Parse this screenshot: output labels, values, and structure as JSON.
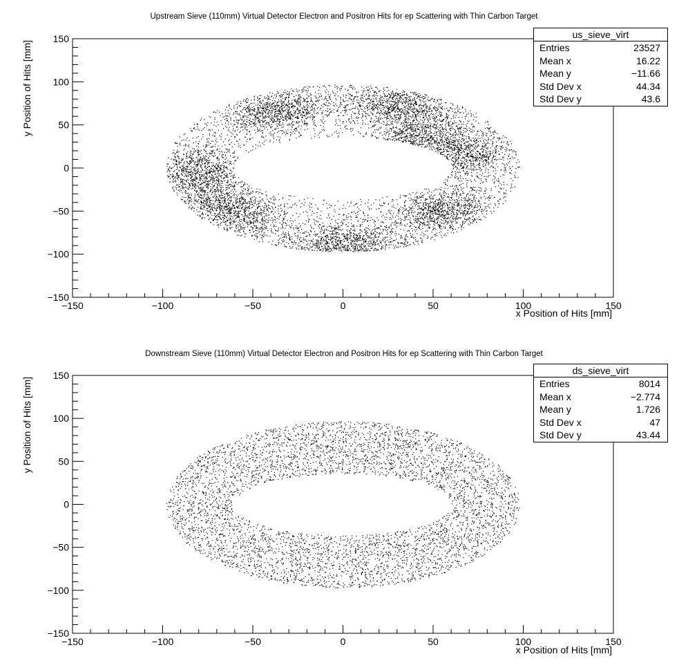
{
  "chart_data": [
    {
      "type": "scatter",
      "title": "Upstream Sieve (110mm) Virtual Detector Electron and Positron Hits for ep Scattering with Thin Carbon Target",
      "xlabel": "x Position of Hits [mm]",
      "ylabel": "y Position of Hits [mm]",
      "xlim": [
        -150,
        150
      ],
      "ylim": [
        -150,
        150
      ],
      "x_ticks": [
        -150,
        -100,
        -50,
        0,
        50,
        100,
        150
      ],
      "y_ticks": [
        -150,
        -100,
        -50,
        0,
        50,
        100,
        150
      ],
      "x_tick_labels": [
        "−150",
        "−100",
        "−50",
        "0",
        "50",
        "100",
        "150"
      ],
      "y_tick_labels": [
        "−150",
        "−100",
        "−50",
        "0",
        "50",
        "100",
        "150"
      ],
      "grid": false,
      "legend": "none",
      "distribution": {
        "shape": "elliptical annulus",
        "center": [
          0,
          0
        ],
        "outer_semi_axes": [
          98,
          97
        ],
        "inner_semi_axes": [
          36,
          36
        ],
        "density": "clustered"
      },
      "stats": {
        "name": "us_sieve_virt",
        "rows": [
          {
            "label": "Entries",
            "value": "23527"
          },
          {
            "label": "Mean x",
            "value": "16.22"
          },
          {
            "label": "Mean y",
            "value": "−11.66"
          },
          {
            "label": "Std Dev x",
            "value": "44.34"
          },
          {
            "label": "Std Dev y",
            "value": "43.6"
          }
        ]
      }
    },
    {
      "type": "scatter",
      "title": "Downstream Sieve (110mm) Virtual Detector Electron and Positron Hits for ep Scattering with Thin Carbon Target",
      "xlabel": "x Position of Hits [mm]",
      "ylabel": "y Position of Hits [mm]",
      "xlim": [
        -150,
        150
      ],
      "ylim": [
        -150,
        150
      ],
      "x_ticks": [
        -150,
        -100,
        -50,
        0,
        50,
        100,
        150
      ],
      "y_ticks": [
        -150,
        -100,
        -50,
        0,
        50,
        100,
        150
      ],
      "x_tick_labels": [
        "−150",
        "−100",
        "−50",
        "0",
        "50",
        "100",
        "150"
      ],
      "y_tick_labels": [
        "−150",
        "−100",
        "−50",
        "0",
        "50",
        "100",
        "150"
      ],
      "grid": false,
      "legend": "none",
      "distribution": {
        "shape": "elliptical annulus",
        "center": [
          0,
          0
        ],
        "outer_semi_axes": [
          98,
          97
        ],
        "inner_semi_axes": [
          36,
          36
        ],
        "density": "uniform"
      },
      "stats": {
        "name": "ds_sieve_virt",
        "rows": [
          {
            "label": "Entries",
            "value": "8014"
          },
          {
            "label": "Mean x",
            "value": "−2.774"
          },
          {
            "label": "Mean y",
            "value": "1.726"
          },
          {
            "label": "Std Dev x",
            "value": "47"
          },
          {
            "label": "Std Dev y",
            "value": "43.44"
          }
        ]
      }
    }
  ]
}
